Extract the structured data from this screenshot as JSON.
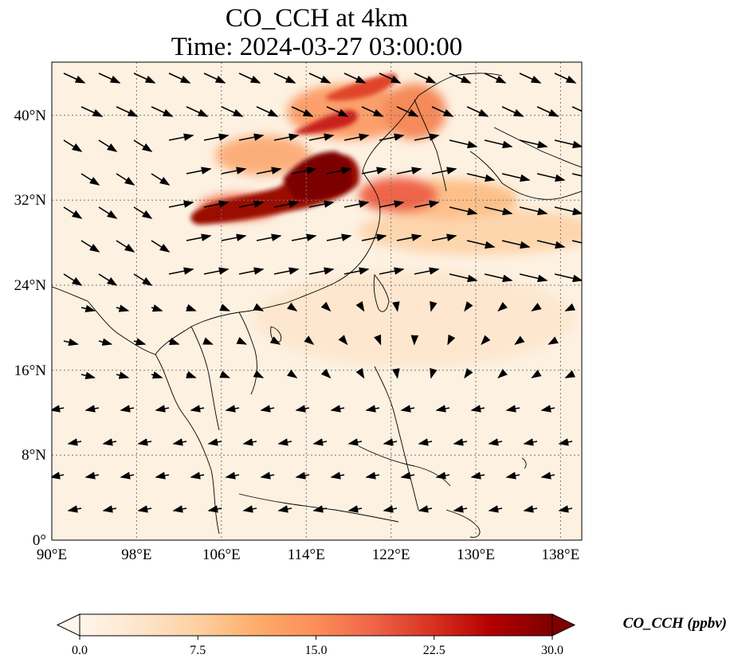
{
  "title": {
    "line1": "CO_CCH at 4km",
    "line2": "Time: 2024-03-27 03:00:00"
  },
  "map": {
    "lon_range": [
      90,
      140
    ],
    "lat_range": [
      0,
      45
    ],
    "lon_ticks": [
      "90°E",
      "98°E",
      "106°E",
      "114°E",
      "122°E",
      "130°E",
      "138°E"
    ],
    "lat_ticks": [
      "0°",
      "8°N",
      "16°N",
      "24°N",
      "32°N",
      "40°N"
    ],
    "gridlines": true
  },
  "colorbar": {
    "label": "CO_CCH (ppbv)",
    "ticks": [
      "0.0",
      "7.5",
      "15.0",
      "22.5",
      "30.0"
    ],
    "min": 0,
    "max": 30,
    "extend": "both",
    "colors": [
      "#fff5eb",
      "#fee6ce",
      "#fdd0a2",
      "#fdae6b",
      "#fd8d3c",
      "#f16913",
      "#d94801",
      "#a63603",
      "#7f0000"
    ]
  }
}
